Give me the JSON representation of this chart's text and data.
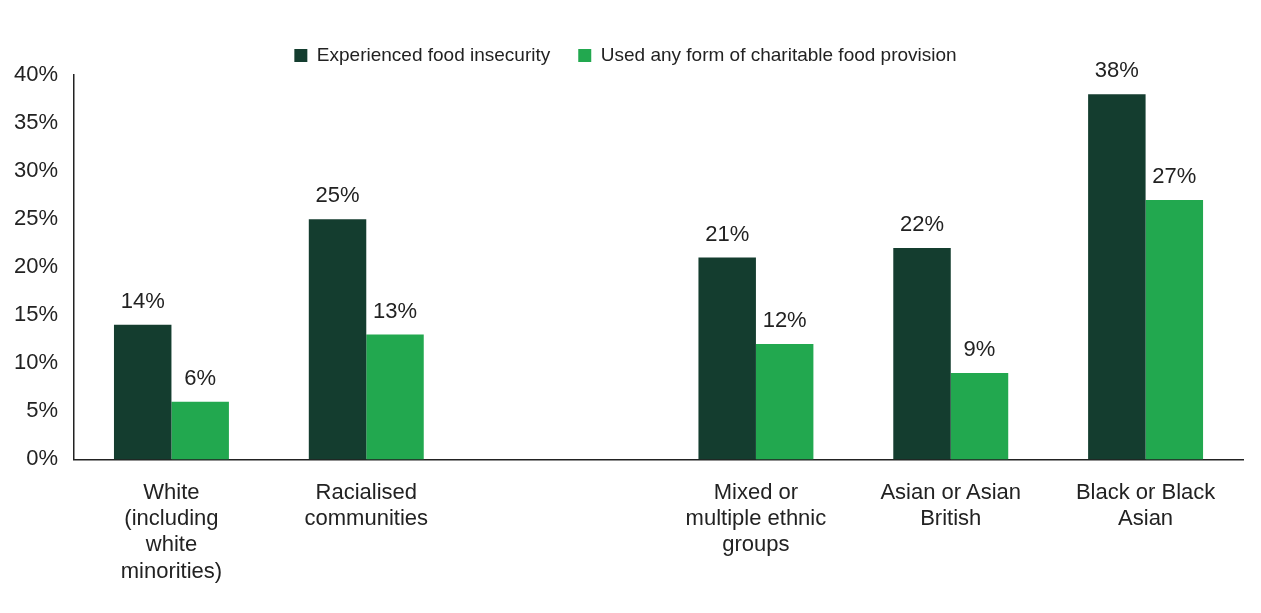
{
  "chart_data": {
    "type": "bar",
    "categories": [
      "White (including white minorities)",
      "Racialised communities",
      null,
      "Mixed or multiple ethnic groups",
      "Asian or Asian British",
      "Black or Black Asian"
    ],
    "series": [
      {
        "name": "Experienced food insecurity",
        "color": "#143d2f",
        "values": [
          14,
          25,
          null,
          21,
          22,
          38
        ],
        "value_labels": [
          "14%",
          "25%",
          null,
          "21%",
          "22%",
          "38%"
        ]
      },
      {
        "name": "Used any form of charitable food provision",
        "color": "#22a84f",
        "values": [
          6,
          13,
          null,
          12,
          9,
          27
        ],
        "value_labels": [
          "6%",
          "13%",
          null,
          "12%",
          "9%",
          "27%"
        ]
      }
    ],
    "ylim": [
      0,
      40
    ],
    "yticks": [
      {
        "value": 0,
        "label": "0%"
      },
      {
        "value": 5,
        "label": "5%"
      },
      {
        "value": 10,
        "label": "10%"
      },
      {
        "value": 15,
        "label": "15%"
      },
      {
        "value": 20,
        "label": "20%"
      },
      {
        "value": 25,
        "label": "25%"
      },
      {
        "value": 30,
        "label": "30%"
      },
      {
        "value": 35,
        "label": "35%"
      },
      {
        "value": 40,
        "label": "40%"
      }
    ],
    "grid": false,
    "legend": "top"
  }
}
